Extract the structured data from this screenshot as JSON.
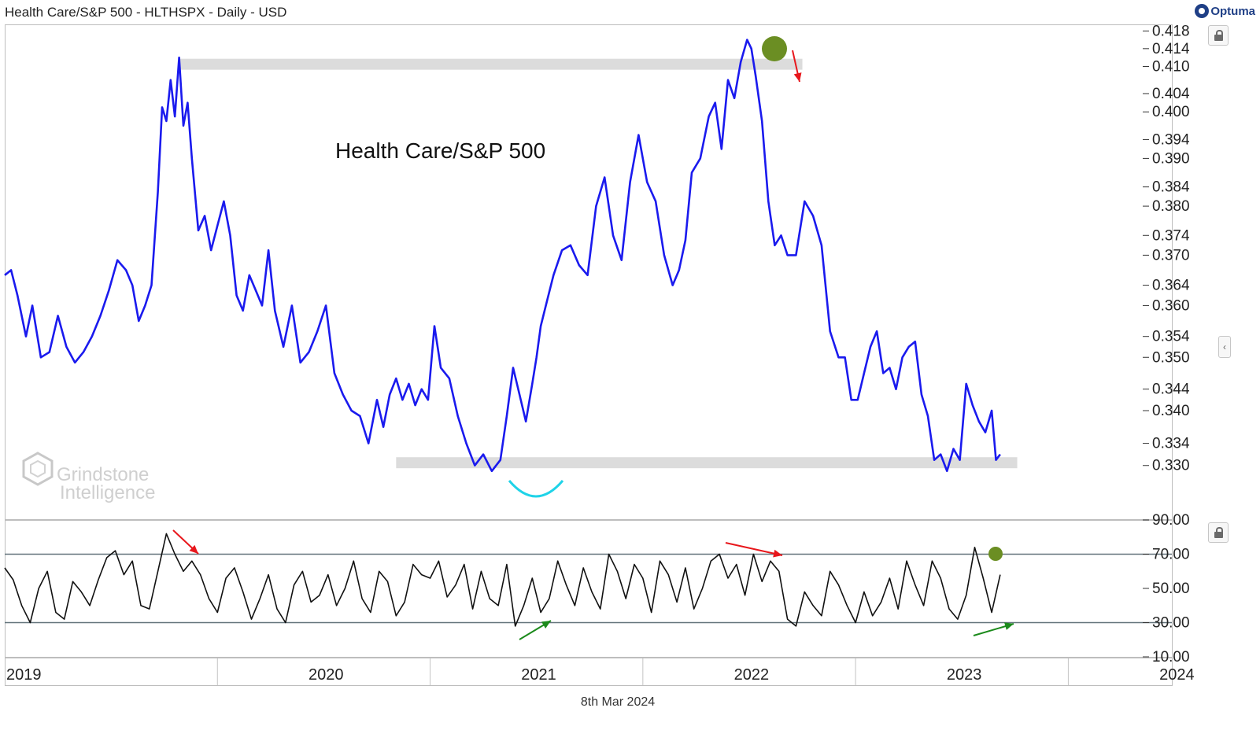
{
  "header": {
    "title": "Health Care/S&P 500 - HLTHSPX - Daily - USD",
    "brand": "Optuma"
  },
  "footer": {
    "date": "8th Mar 2024"
  },
  "watermark": {
    "lines": [
      "Grindstone",
      "Intelligence"
    ]
  },
  "icons": {
    "lock": "lock-icon",
    "collapse": "chevron-left-icon",
    "brand": "optuma-logo-icon"
  },
  "colors": {
    "price_line": "#1a1aee",
    "rsi_line": "#111111",
    "zone": "#dcdcdc",
    "peak_marker": "#6b8e23",
    "bottom_arc": "#1fd3e8",
    "arrow_red": "#e8171c",
    "arrow_green": "#1b8a1b"
  },
  "chart_data": [
    {
      "type": "line",
      "title": "",
      "annotation": "Health Care/S&P 500",
      "ylabel": "",
      "yscale": "log",
      "xlim": [
        2019.0,
        2024.35
      ],
      "ylim": [
        0.3205,
        0.4195
      ],
      "yticks": [
        "0.418",
        "0.414",
        "0.410",
        "0.404",
        "0.400",
        "0.394",
        "0.390",
        "0.384",
        "0.380",
        "0.374",
        "0.370",
        "0.364",
        "0.360",
        "0.354",
        "0.350",
        "0.344",
        "0.340",
        "0.334",
        "0.330"
      ],
      "ytick_values": [
        0.418,
        0.414,
        0.41,
        0.404,
        0.4,
        0.394,
        0.39,
        0.384,
        0.38,
        0.374,
        0.37,
        0.364,
        0.36,
        0.354,
        0.35,
        0.344,
        0.34,
        0.334,
        0.33
      ],
      "resistance_zone": {
        "x": [
          2019.82,
          2022.75
        ],
        "y": 0.4105
      },
      "support_zone": {
        "x": [
          2020.84,
          2023.76
        ],
        "y": 0.3305
      },
      "series": [
        {
          "x": [
            2019.0,
            2019.03,
            2019.06,
            2019.1,
            2019.13,
            2019.17,
            2019.21,
            2019.25,
            2019.29,
            2019.33,
            2019.37,
            2019.41,
            2019.45,
            2019.49,
            2019.53,
            2019.57,
            2019.6,
            2019.63,
            2019.66,
            2019.69,
            2019.72,
            2019.74,
            2019.76,
            2019.78,
            2019.8,
            2019.82,
            2019.84,
            2019.86,
            2019.88,
            2019.91,
            2019.94,
            2019.97,
            2020.0,
            2020.03,
            2020.06,
            2020.09,
            2020.12,
            2020.15,
            2020.18,
            2020.21,
            2020.24,
            2020.27,
            2020.31,
            2020.35,
            2020.39,
            2020.43,
            2020.47,
            2020.51,
            2020.55,
            2020.59,
            2020.63,
            2020.67,
            2020.71,
            2020.75,
            2020.78,
            2020.81,
            2020.84,
            2020.87,
            2020.9,
            2020.93,
            2020.96,
            2020.99,
            2021.02,
            2021.05,
            2021.09,
            2021.13,
            2021.17,
            2021.21,
            2021.25,
            2021.29,
            2021.33,
            2021.36,
            2021.39,
            2021.42,
            2021.45,
            2021.48,
            2021.5,
            2021.52,
            2021.55,
            2021.58,
            2021.62,
            2021.66,
            2021.7,
            2021.74,
            2021.78,
            2021.82,
            2021.86,
            2021.9,
            2021.94,
            2021.98,
            2022.02,
            2022.06,
            2022.1,
            2022.14,
            2022.17,
            2022.2,
            2022.23,
            2022.27,
            2022.31,
            2022.34,
            2022.37,
            2022.4,
            2022.43,
            2022.46,
            2022.49,
            2022.51,
            2022.53,
            2022.56,
            2022.59,
            2022.62,
            2022.65,
            2022.68,
            2022.72,
            2022.76,
            2022.8,
            2022.84,
            2022.88,
            2022.92,
            2022.95,
            2022.98,
            2023.01,
            2023.04,
            2023.07,
            2023.1,
            2023.13,
            2023.16,
            2023.19,
            2023.22,
            2023.25,
            2023.28,
            2023.31,
            2023.34,
            2023.37,
            2023.4,
            2023.43,
            2023.46,
            2023.49,
            2023.52,
            2023.55,
            2023.58,
            2023.61,
            2023.64,
            2023.66,
            2023.68
          ],
          "y": [
            0.366,
            0.367,
            0.362,
            0.354,
            0.36,
            0.35,
            0.351,
            0.358,
            0.352,
            0.349,
            0.351,
            0.354,
            0.358,
            0.363,
            0.369,
            0.367,
            0.364,
            0.357,
            0.36,
            0.364,
            0.383,
            0.401,
            0.398,
            0.407,
            0.399,
            0.412,
            0.397,
            0.402,
            0.39,
            0.375,
            0.378,
            0.371,
            0.376,
            0.381,
            0.374,
            0.362,
            0.359,
            0.366,
            0.363,
            0.36,
            0.371,
            0.359,
            0.352,
            0.36,
            0.349,
            0.351,
            0.355,
            0.36,
            0.347,
            0.343,
            0.34,
            0.339,
            0.334,
            0.342,
            0.337,
            0.343,
            0.346,
            0.342,
            0.345,
            0.341,
            0.344,
            0.342,
            0.356,
            0.348,
            0.346,
            0.339,
            0.334,
            0.33,
            0.332,
            0.329,
            0.331,
            0.339,
            0.348,
            0.343,
            0.338,
            0.345,
            0.35,
            0.356,
            0.361,
            0.366,
            0.371,
            0.372,
            0.368,
            0.366,
            0.38,
            0.386,
            0.374,
            0.369,
            0.385,
            0.395,
            0.385,
            0.381,
            0.37,
            0.364,
            0.367,
            0.373,
            0.387,
            0.39,
            0.399,
            0.402,
            0.392,
            0.407,
            0.403,
            0.411,
            0.416,
            0.414,
            0.408,
            0.398,
            0.381,
            0.372,
            0.374,
            0.37,
            0.37,
            0.381,
            0.378,
            0.372,
            0.355,
            0.35,
            0.35,
            0.342,
            0.342,
            0.347,
            0.352,
            0.355,
            0.347,
            0.348,
            0.344,
            0.35,
            0.352,
            0.353,
            0.343,
            0.339,
            0.331,
            0.332,
            0.329,
            0.333,
            0.331,
            0.345,
            0.341,
            0.338,
            0.336,
            0.34,
            0.331,
            0.332
          ]
        }
      ]
    },
    {
      "type": "line",
      "title": "",
      "ylabel": "",
      "xlim": [
        2019.0,
        2024.35
      ],
      "ylim": [
        10,
        90
      ],
      "yticks": [
        "90.00",
        "70.00",
        "50.00",
        "30.00",
        "10.00"
      ],
      "ytick_values": [
        90,
        70,
        50,
        30,
        10
      ],
      "reference_lines": [
        70,
        30
      ],
      "xticks": [
        "2019",
        "2020",
        "2021",
        "2022",
        "2023",
        "2024"
      ],
      "xtick_values": [
        2019.0,
        2020.0,
        2021.0,
        2022.0,
        2023.0,
        2024.0
      ],
      "series": [
        {
          "x": [
            2019.0,
            2019.04,
            2019.08,
            2019.12,
            2019.16,
            2019.2,
            2019.24,
            2019.28,
            2019.32,
            2019.36,
            2019.4,
            2019.44,
            2019.48,
            2019.52,
            2019.56,
            2019.6,
            2019.64,
            2019.68,
            2019.72,
            2019.76,
            2019.8,
            2019.84,
            2019.88,
            2019.92,
            2019.96,
            2020.0,
            2020.04,
            2020.08,
            2020.12,
            2020.16,
            2020.2,
            2020.24,
            2020.28,
            2020.32,
            2020.36,
            2020.4,
            2020.44,
            2020.48,
            2020.52,
            2020.56,
            2020.6,
            2020.64,
            2020.68,
            2020.72,
            2020.76,
            2020.8,
            2020.84,
            2020.88,
            2020.92,
            2020.96,
            2021.0,
            2021.04,
            2021.08,
            2021.12,
            2021.16,
            2021.2,
            2021.24,
            2021.28,
            2021.32,
            2021.36,
            2021.4,
            2021.44,
            2021.48,
            2021.52,
            2021.56,
            2021.6,
            2021.64,
            2021.68,
            2021.72,
            2021.76,
            2021.8,
            2021.84,
            2021.88,
            2021.92,
            2021.96,
            2022.0,
            2022.04,
            2022.08,
            2022.12,
            2022.16,
            2022.2,
            2022.24,
            2022.28,
            2022.32,
            2022.36,
            2022.4,
            2022.44,
            2022.48,
            2022.52,
            2022.56,
            2022.6,
            2022.64,
            2022.68,
            2022.72,
            2022.76,
            2022.8,
            2022.84,
            2022.88,
            2022.92,
            2022.96,
            2023.0,
            2023.04,
            2023.08,
            2023.12,
            2023.16,
            2023.2,
            2023.24,
            2023.28,
            2023.32,
            2023.36,
            2023.4,
            2023.44,
            2023.48,
            2023.52,
            2023.56,
            2023.6,
            2023.64,
            2023.68
          ],
          "y": [
            62,
            55,
            40,
            30,
            50,
            60,
            36,
            32,
            54,
            48,
            40,
            55,
            68,
            72,
            58,
            66,
            40,
            38,
            60,
            82,
            70,
            60,
            66,
            58,
            44,
            36,
            56,
            62,
            48,
            32,
            44,
            58,
            38,
            30,
            52,
            60,
            42,
            46,
            58,
            40,
            50,
            66,
            44,
            36,
            60,
            54,
            34,
            42,
            64,
            58,
            56,
            66,
            45,
            52,
            64,
            38,
            60,
            44,
            40,
            64,
            28,
            40,
            56,
            36,
            44,
            66,
            52,
            40,
            62,
            48,
            38,
            70,
            60,
            44,
            64,
            56,
            36,
            66,
            58,
            42,
            62,
            38,
            50,
            66,
            70,
            56,
            64,
            46,
            70,
            54,
            66,
            60,
            32,
            28,
            48,
            40,
            34,
            60,
            52,
            40,
            30,
            48,
            34,
            42,
            56,
            38,
            66,
            52,
            40,
            66,
            56,
            38,
            32,
            46,
            74,
            56,
            36,
            58
          ]
        }
      ]
    }
  ]
}
